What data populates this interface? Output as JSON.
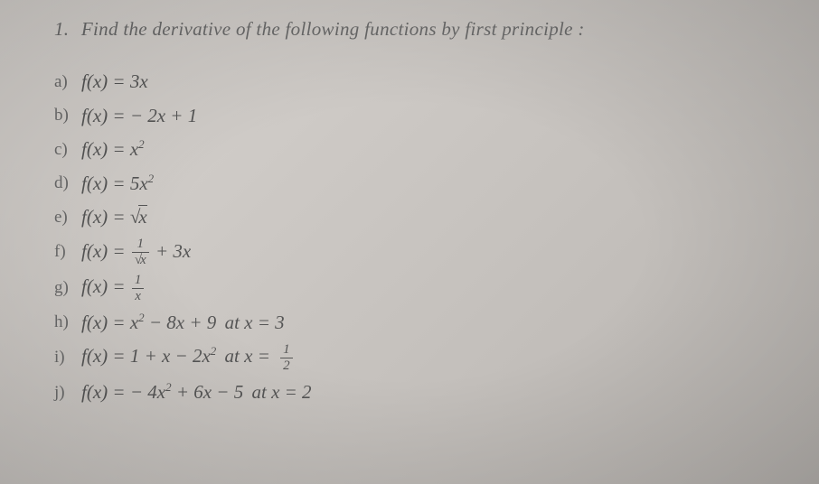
{
  "title": {
    "number": "1.",
    "text": "Find the derivative of the following functions by first principle :"
  },
  "items": {
    "a": {
      "label": "a)",
      "fn": "f(x) = 3x"
    },
    "b": {
      "label": "b)",
      "fn": "f(x) = − 2x + 1"
    },
    "c": {
      "label": "c)",
      "fn_prefix": "f(x) = x",
      "exp": "2"
    },
    "d": {
      "label": "d)",
      "fn_prefix": "f(x) = 5x",
      "exp": "2"
    },
    "e": {
      "label": "e)",
      "fn_prefix": "f(x) = ",
      "sqrt_arg": "x"
    },
    "f": {
      "label": "f)",
      "fn_prefix": "f(x) = ",
      "frac_num": "1",
      "frac_den_sqrt": "x",
      "suffix": " + 3x"
    },
    "g": {
      "label": "g)",
      "fn_prefix": "f(x) = ",
      "frac_num": "1",
      "frac_den": "x"
    },
    "h": {
      "label": "h)",
      "fn_prefix": "f(x) = x",
      "exp": "2",
      "mid": " − 8x + 9",
      "at": " at x = 3"
    },
    "i": {
      "label": "i)",
      "fn_prefix": "f(x) = 1 + x − 2x",
      "exp": "2",
      "at_prefix": " at x = ",
      "frac_num": "1",
      "frac_den": "2"
    },
    "j": {
      "label": "j)",
      "fn_prefix": "f(x) = − 4x",
      "exp": "2",
      "mid": " + 6x − 5",
      "at": " at x = 2"
    }
  },
  "style": {
    "bg_gradient_start": "#d8d4d0",
    "bg_gradient_mid": "#c8c4c0",
    "bg_gradient_end": "#b8b4b0",
    "title_color": "#6a6a6a",
    "text_color": "#555555",
    "title_fontsize": 21,
    "body_fontsize": 21,
    "label_fontsize": 19,
    "sup_fontsize": 13,
    "frac_fontsize": 15
  }
}
